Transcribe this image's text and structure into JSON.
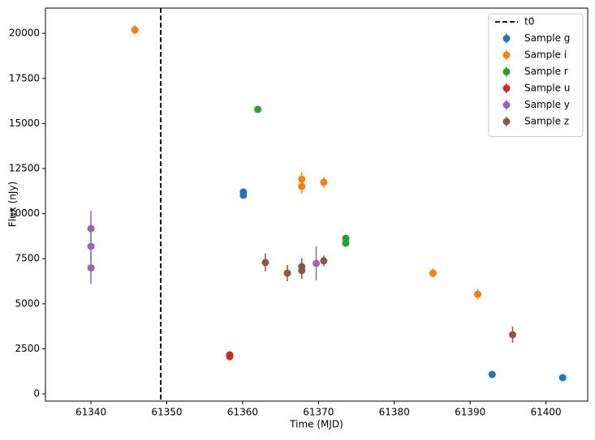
{
  "chart_data": {
    "type": "scatter",
    "x_label": "Time (MJD)",
    "y_label": "Flux (nJy)",
    "xlim": [
      61334,
      61405.5
    ],
    "ylim": [
      -400,
      21400
    ],
    "xticks": [
      61340,
      61350,
      61360,
      61370,
      61380,
      61390,
      61400
    ],
    "yticks": [
      0,
      2500,
      5000,
      7500,
      10000,
      12500,
      15000,
      17500,
      20000
    ],
    "legend": "upper right",
    "vlines": [
      {
        "x": 61349.2,
        "label": "t0",
        "color": "#000000",
        "style": "dashed"
      }
    ],
    "series": [
      {
        "name": "Sample g",
        "color": "#1f77b4",
        "x": [
          61360.1,
          61360.1,
          61392.9,
          61402.2
        ],
        "values": [
          11200,
          11020,
          1080,
          900
        ],
        "errors": [
          150,
          150,
          120,
          100
        ]
      },
      {
        "name": "Sample i",
        "color": "#ff7f0e",
        "x": [
          61345.8,
          61367.8,
          61367.8,
          61370.7,
          61385.1,
          61391.0
        ],
        "values": [
          20190,
          11900,
          11510,
          11740,
          6700,
          5530
        ],
        "errors": [
          250,
          400,
          400,
          300,
          250,
          300
        ]
      },
      {
        "name": "Sample r",
        "color": "#2ca02c",
        "x": [
          61362.0,
          61373.6,
          61373.6
        ],
        "values": [
          15780,
          8630,
          8360
        ],
        "errors": [
          150,
          150,
          150
        ]
      },
      {
        "name": "Sample u",
        "color": "#d62728",
        "x": [
          61358.3,
          61358.3
        ],
        "values": [
          2160,
          2070
        ],
        "errors": [
          200,
          200
        ]
      },
      {
        "name": "Sample y",
        "color": "#9467bd",
        "x": [
          61340.0,
          61340.0,
          61340.0,
          61369.7
        ],
        "values": [
          9170,
          8180,
          6990,
          7240
        ],
        "errors": [
          1000,
          900,
          900,
          950
        ]
      },
      {
        "name": "Sample z",
        "color": "#8c564b",
        "x": [
          61363.0,
          61365.9,
          61367.8,
          61367.8,
          61370.7,
          61395.6
        ],
        "values": [
          7290,
          6700,
          7060,
          6840,
          7380,
          3280
        ],
        "errors": [
          500,
          450,
          450,
          450,
          300,
          450
        ]
      }
    ]
  }
}
